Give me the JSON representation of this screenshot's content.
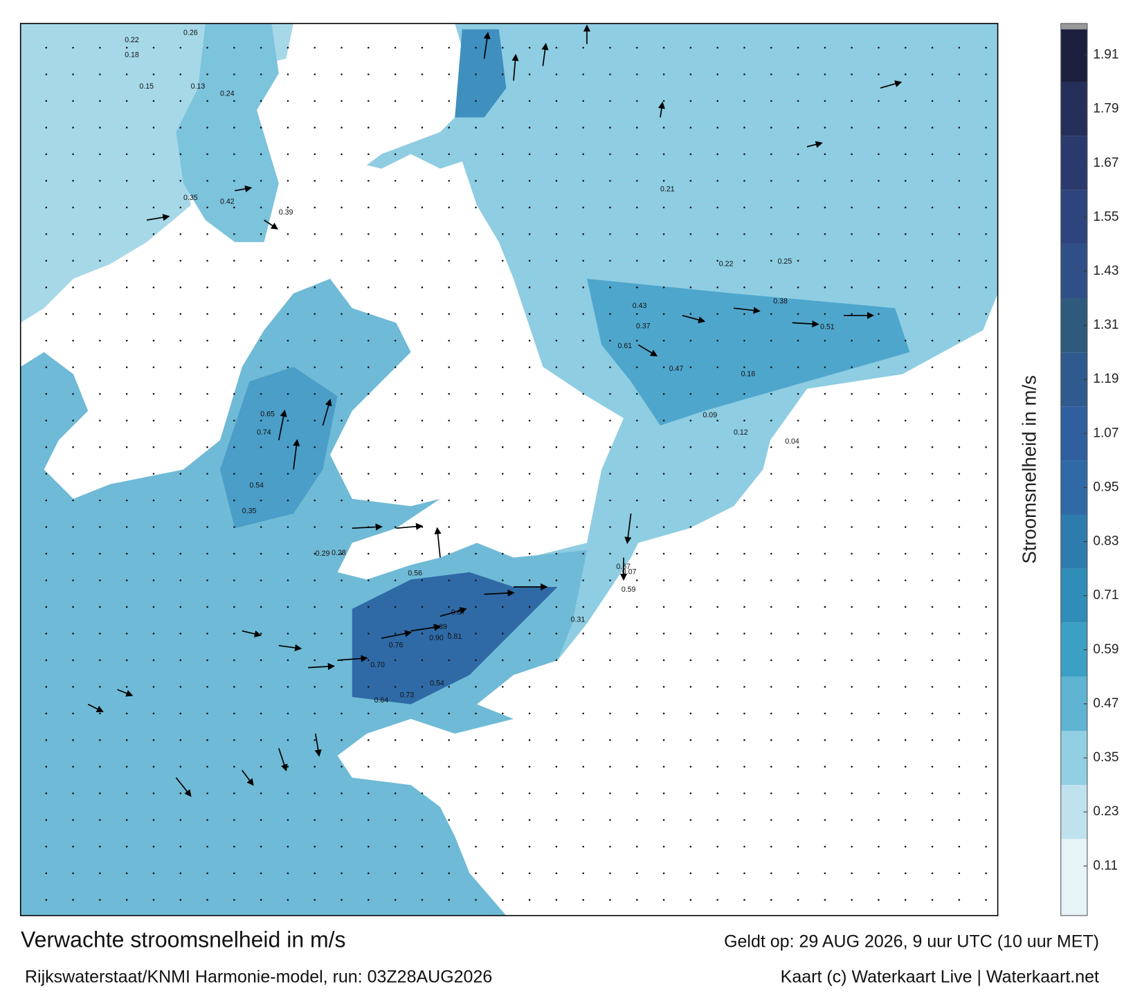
{
  "title": "Verwachte stroomsnelheid in m/s",
  "subtitle": "Rijkswaterstaat/KNMI Harmonie-model, run: 03Z28AUG2026",
  "valid": "Geldt op: 29 AUG 2026, 9 uur UTC (10 uur MET)",
  "credit": "Kaart (c) Waterkaart Live | Waterkaart.net",
  "colorbar": {
    "label": "Stroomsnelheid in m/s",
    "lim": [
      0,
      1.98
    ],
    "ticks": [
      0.11,
      0.23,
      0.35,
      0.47,
      0.59,
      0.71,
      0.83,
      0.95,
      1.07,
      1.19,
      1.31,
      1.43,
      1.55,
      1.67,
      1.79,
      1.91
    ],
    "colors": [
      "#e6f3f7",
      "#bfe2ee",
      "#93cfe2",
      "#5fb4d2",
      "#3c9fc4",
      "#2f8db8",
      "#2e7cae",
      "#2f6aa6",
      "#2f5f9e",
      "#2f5a8e",
      "#2e5a7e",
      "#2f4f86",
      "#2e447c",
      "#2b3a6c",
      "#24305a",
      "#1b1e3c"
    ]
  },
  "labels": [
    "0.22",
    "0.18",
    "0.26",
    "0.15",
    "0.13",
    "0.24",
    "0.35",
    "0.42",
    "0.39",
    "0.74",
    "0.65",
    "0.54",
    "0.35",
    "0.29",
    "0.28",
    "0.81",
    "0.89",
    "0.87",
    "0.90",
    "0.76",
    "0.70",
    "0.64",
    "0.73",
    "0.54",
    "0.67",
    "0.59",
    "0.56",
    "0.61",
    "0.43",
    "0.37",
    "0.38",
    "0.51",
    "0.47",
    "0.25",
    "0.22",
    "0.16",
    "0.12",
    "0.09",
    "0.07",
    "0.04",
    "0.31",
    "0.21"
  ]
}
